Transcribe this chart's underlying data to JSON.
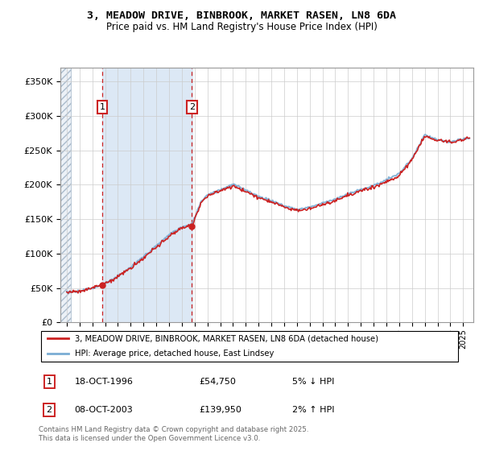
{
  "title_line1": "3, MEADOW DRIVE, BINBROOK, MARKET RASEN, LN8 6DA",
  "title_line2": "Price paid vs. HM Land Registry's House Price Index (HPI)",
  "legend_line1": "3, MEADOW DRIVE, BINBROOK, MARKET RASEN, LN8 6DA (detached house)",
  "legend_line2": "HPI: Average price, detached house, East Lindsey",
  "annotation1_date": "18-OCT-1996",
  "annotation1_price": "£54,750",
  "annotation1_hpi": "5% ↓ HPI",
  "annotation2_date": "08-OCT-2003",
  "annotation2_price": "£139,950",
  "annotation2_hpi": "2% ↑ HPI",
  "footer": "Contains HM Land Registry data © Crown copyright and database right 2025.\nThis data is licensed under the Open Government Licence v3.0.",
  "sale1_year": 1996.8,
  "sale1_price": 54750,
  "sale2_year": 2003.8,
  "sale2_price": 139950,
  "hpi_color": "#7aadd4",
  "price_color": "#cc2222",
  "annotation_box_color": "#cc2222",
  "shade_color": "#dce8f5",
  "grid_color": "#cccccc",
  "yticks": [
    0,
    50000,
    100000,
    150000,
    200000,
    250000,
    300000,
    350000
  ],
  "ylim": [
    0,
    370000
  ],
  "xlim_start": 1993.5,
  "xlim_end": 2025.8
}
